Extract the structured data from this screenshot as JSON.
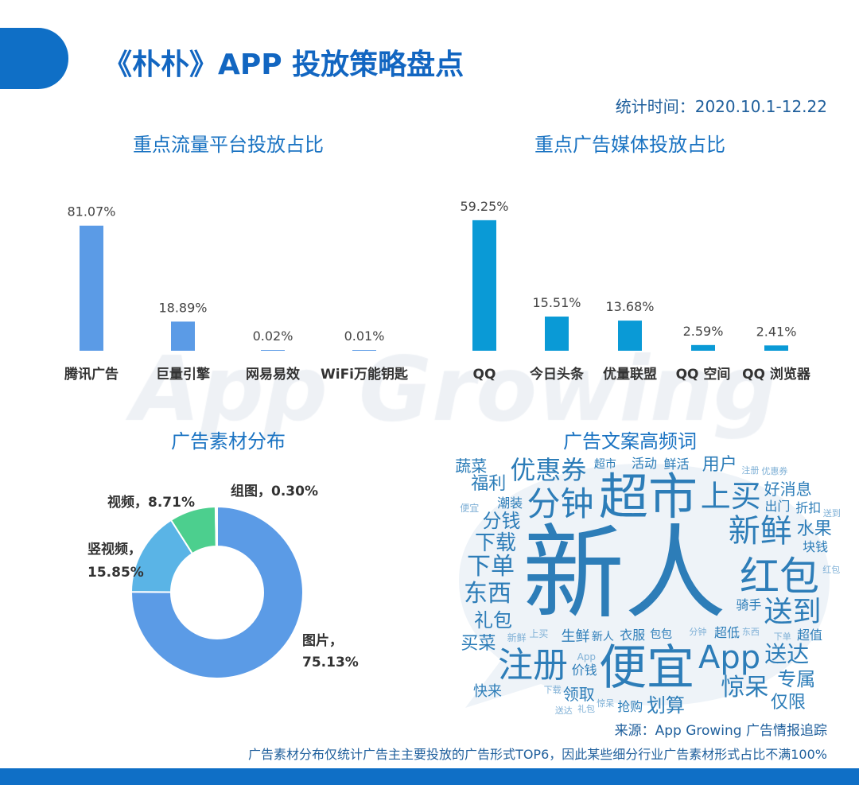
{
  "header": {
    "title": "《朴朴》APP 投放策略盘点",
    "stat_time": "统计时间：2020.10.1-12.22"
  },
  "watermark": "App Growing",
  "colors": {
    "brand": "#0f6fc6",
    "bar_left": "#5b9be6",
    "bar_right": "#0a9ad6",
    "cloud_word": "#2d7db8"
  },
  "chart_data": [
    {
      "type": "bar",
      "title": "重点流量平台投放占比",
      "categories": [
        "腾讯广告",
        "巨量引擎",
        "网易易效",
        "WiFi万能钥匙"
      ],
      "values": [
        81.07,
        18.89,
        0.02,
        0.01
      ],
      "labels": [
        "81.07%",
        "18.89%",
        "0.02%",
        "0.01%"
      ],
      "unit": "%",
      "grid": false
    },
    {
      "type": "bar",
      "title": "重点广告媒体投放占比",
      "categories": [
        "QQ",
        "今日头条",
        "优量联盟",
        "QQ 空间",
        "QQ 浏览器"
      ],
      "values": [
        59.25,
        15.51,
        13.68,
        2.59,
        2.41
      ],
      "labels": [
        "59.25%",
        "15.51%",
        "13.68%",
        "2.59%",
        "2.41%"
      ],
      "unit": "%",
      "grid": false
    },
    {
      "type": "pie",
      "donut": true,
      "title": "广告素材分布",
      "slices": [
        {
          "name": "图片",
          "value": 75.13,
          "label": "图片，",
          "pct": "75.13%",
          "color": "#5b9be6"
        },
        {
          "name": "竖视频",
          "value": 15.85,
          "label": "竖视频，",
          "pct": "15.85%",
          "color": "#5ab4e6"
        },
        {
          "name": "视频",
          "value": 8.71,
          "label": "视频，8.71%",
          "color": "#4ccf8e"
        },
        {
          "name": "组图",
          "value": 0.3,
          "label": "组图，0.30%",
          "color": "#f0b44c"
        }
      ]
    }
  ],
  "wordcloud": {
    "title": "广告文案高频词",
    "words": [
      "新人",
      "超市",
      "分钟",
      "红包",
      "注册",
      "便宜",
      "新鲜",
      "App",
      "上买",
      "送到",
      "优惠券",
      "下单",
      "东西",
      "惊呆",
      "送达",
      "下载",
      "分钱",
      "礼包",
      "划算",
      "专属",
      "买菜",
      "福利",
      "仅限",
      "用户",
      "水果",
      "蔬菜",
      "好消息",
      "领取",
      "生鲜",
      "快来",
      "活动",
      "鲜活",
      "出门",
      "潮装",
      "折扣",
      "块钱",
      "骑手",
      "超低",
      "超值",
      "价钱",
      "抢购",
      "衣服",
      "新人",
      "超市",
      "包包",
      "App",
      "便宜",
      "上买",
      "新鲜",
      "注册",
      "优惠券",
      "分钟",
      "红包",
      "送到",
      "东西",
      "下单",
      "下载",
      "惊呆",
      "礼包",
      "送达"
    ]
  },
  "footer": {
    "source": "来源：App Growing 广告情报追踪",
    "note": "广告素材分布仅统计广告主主要投放的广告形式TOP6，因此某些细分行业广告素材形式占比不满100%"
  }
}
